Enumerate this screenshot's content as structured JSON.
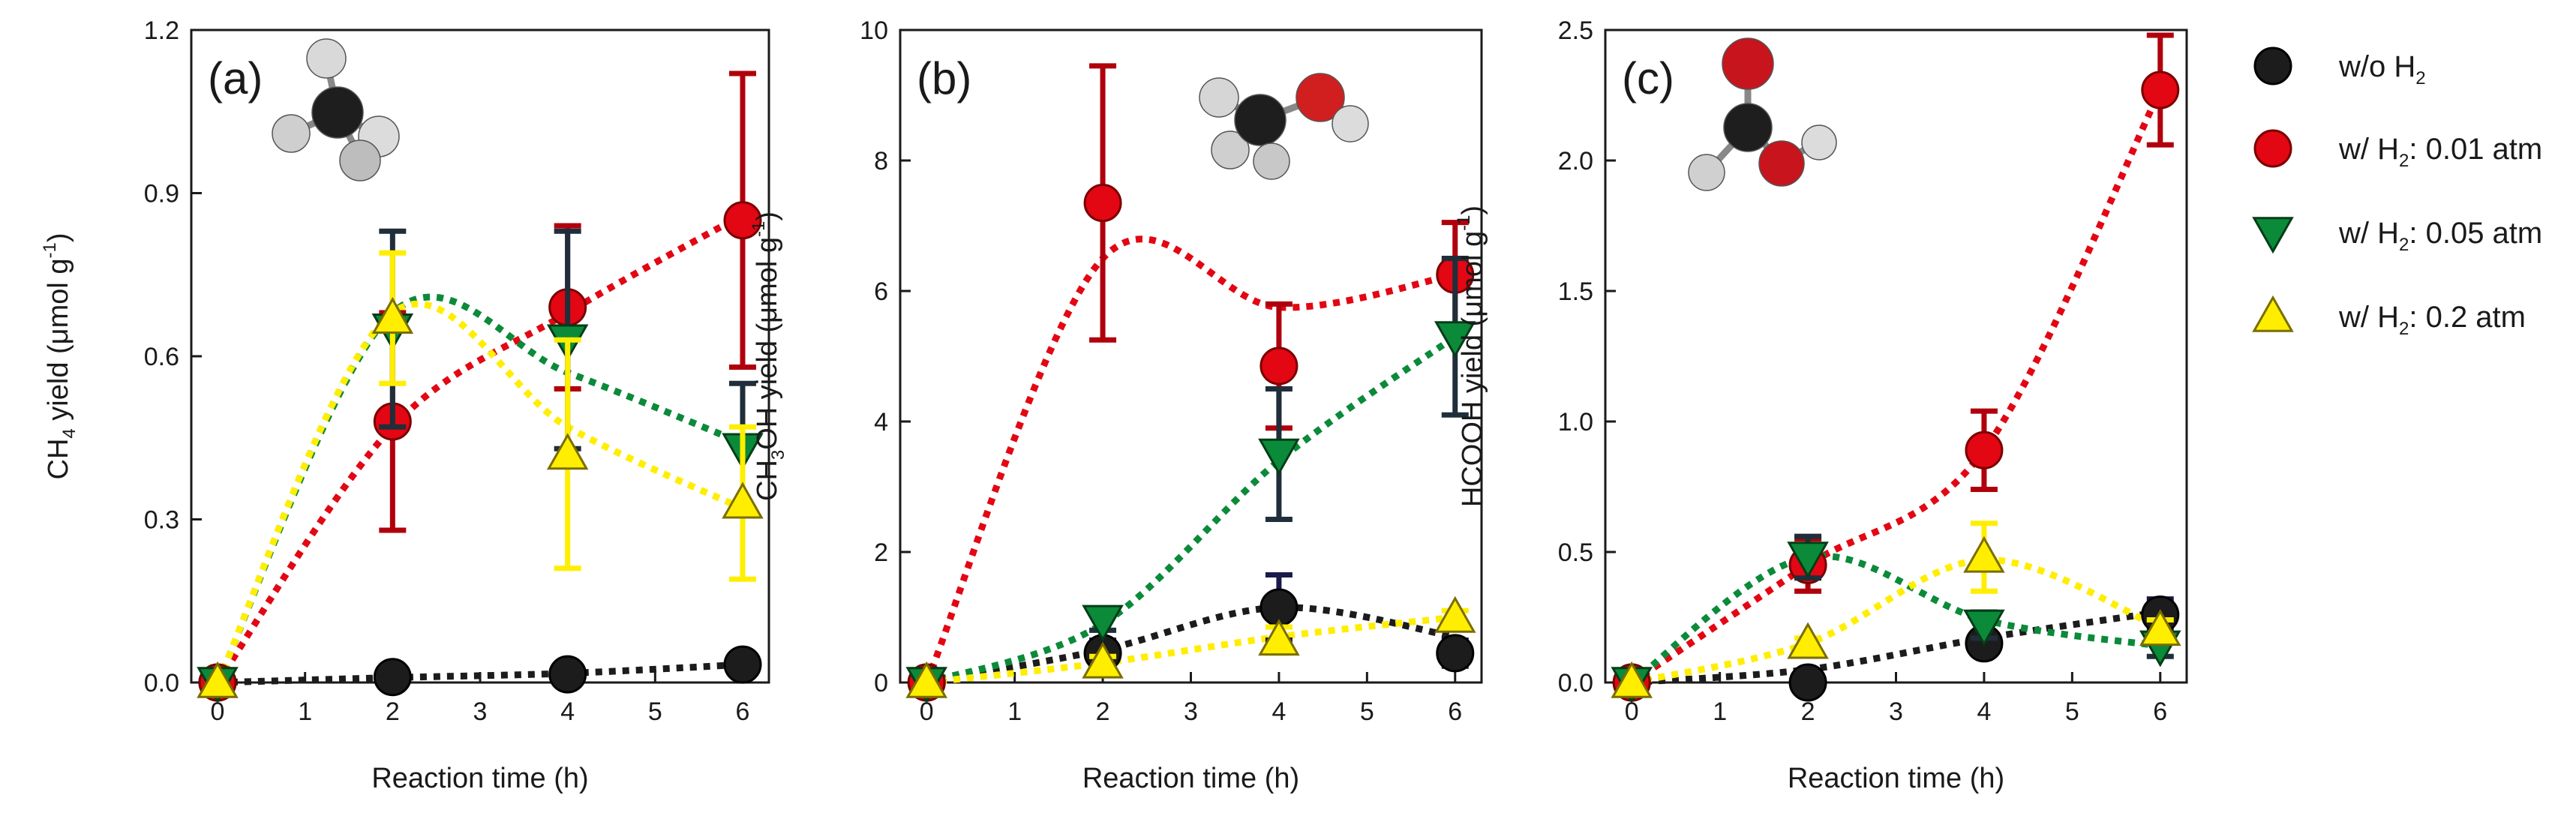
{
  "chart_data": [
    {
      "type": "scatter",
      "panel_label": "(a)",
      "xlabel": "Reaction time (h)",
      "ylabel": "CH",
      "ylabel_sub": "4",
      "ylabel_rest": " yield (μmol g",
      "ylabel_sup": "-1",
      "ylabel_end": ")",
      "xlim": [
        -0.3,
        6.3
      ],
      "ylim": [
        0,
        1.2
      ],
      "xticks": [
        0,
        1,
        2,
        3,
        4,
        5,
        6
      ],
      "yticks": [
        0.0,
        0.3,
        0.6,
        0.9,
        1.2
      ],
      "ytick_labels": [
        "0.0",
        "0.3",
        "0.6",
        "0.9",
        "1.2"
      ],
      "molecule": "methane",
      "series": [
        {
          "name": "w/o H2",
          "x": [
            0,
            2,
            4,
            6
          ],
          "y": [
            0.0,
            0.01,
            0.015,
            0.033
          ],
          "err": [
            0.005,
            0.005,
            0.008,
            0.01
          ],
          "curve": [
            0.0,
            0.009,
            0.017,
            0.033
          ]
        },
        {
          "name": "w/ H2: 0.01 atm",
          "x": [
            0,
            2,
            4,
            6
          ],
          "y": [
            0.0,
            0.48,
            0.69,
            0.85
          ],
          "err": [
            0.0,
            0.2,
            0.15,
            0.27
          ],
          "curve": [
            0.0,
            0.47,
            0.68,
            0.86
          ]
        },
        {
          "name": "w/ H2: 0.05 atm",
          "x": [
            0,
            2,
            4,
            6
          ],
          "y": [
            0.0,
            0.65,
            0.63,
            0.43
          ],
          "err": [
            0.0,
            0.18,
            0.2,
            0.12
          ],
          "curve": [
            0.0,
            0.68,
            0.57,
            0.44
          ]
        },
        {
          "name": "w/ H2: 0.2 atm",
          "x": [
            0,
            2,
            4,
            6
          ],
          "y": [
            0.0,
            0.67,
            0.42,
            0.33
          ],
          "err": [
            0.0,
            0.12,
            0.21,
            0.14
          ],
          "curve": [
            0.0,
            0.68,
            0.47,
            0.32
          ]
        }
      ]
    },
    {
      "type": "scatter",
      "panel_label": "(b)",
      "xlabel": "Reaction time (h)",
      "ylabel": "CH",
      "ylabel_sub": "3",
      "ylabel_rest": "OH yield (μmol g",
      "ylabel_sup": "-1",
      "ylabel_end": ")",
      "xlim": [
        -0.3,
        6.3
      ],
      "ylim": [
        0,
        10
      ],
      "xticks": [
        0,
        1,
        2,
        3,
        4,
        5,
        6
      ],
      "yticks": [
        0,
        2,
        4,
        6,
        8,
        10
      ],
      "ytick_labels": [
        "0",
        "2",
        "4",
        "6",
        "8",
        "10"
      ],
      "molecule": "methanol",
      "series": [
        {
          "name": "w/o H2",
          "x": [
            0,
            2,
            4,
            6
          ],
          "y": [
            0.0,
            0.45,
            1.15,
            0.45
          ],
          "err": [
            0.05,
            0.2,
            0.5,
            0.2
          ],
          "curve": [
            0.0,
            0.5,
            1.15,
            0.7
          ]
        },
        {
          "name": "w/ H2: 0.01 atm",
          "x": [
            0,
            2,
            4,
            6
          ],
          "y": [
            0.0,
            7.35,
            4.85,
            6.25
          ],
          "err": [
            0.0,
            2.1,
            0.95,
            0.8
          ],
          "curve": [
            0.0,
            6.5,
            5.75,
            6.25
          ]
        },
        {
          "name": "w/ H2: 0.05 atm",
          "x": [
            0,
            2,
            4,
            6
          ],
          "y": [
            0.0,
            0.95,
            3.5,
            5.3
          ],
          "err": [
            0.0,
            0.15,
            1.0,
            1.2
          ],
          "curve": [
            0.0,
            0.9,
            3.4,
            5.3
          ]
        },
        {
          "name": "w/ H2: 0.2 atm",
          "x": [
            0,
            2,
            4,
            6
          ],
          "y": [
            0.0,
            0.3,
            0.65,
            1.0
          ],
          "err": [
            0.0,
            0.1,
            0.2,
            0.1
          ],
          "curve": [
            0.0,
            0.3,
            0.7,
            1.0
          ]
        }
      ]
    },
    {
      "type": "scatter",
      "panel_label": "(c)",
      "xlabel": "Reaction time (h)",
      "ylabel": "HCOOH yield (μmol g",
      "ylabel_sub": "",
      "ylabel_rest": "",
      "ylabel_sup": "-1",
      "ylabel_end": ")",
      "xlim": [
        -0.3,
        6.3
      ],
      "ylim": [
        0,
        2.5
      ],
      "xticks": [
        0,
        1,
        2,
        3,
        4,
        5,
        6
      ],
      "yticks": [
        0.0,
        0.5,
        1.0,
        1.5,
        2.0,
        2.5
      ],
      "ytick_labels": [
        "0.0",
        "0.5",
        "1.0",
        "1.5",
        "2.0",
        "2.5"
      ],
      "molecule": "formic-acid",
      "series": [
        {
          "name": "w/o H2",
          "x": [
            0,
            2,
            4,
            6
          ],
          "y": [
            0.0,
            0.0,
            0.15,
            0.26
          ],
          "err": [
            0.0,
            0.0,
            0.03,
            0.06
          ],
          "curve": [
            0.0,
            0.05,
            0.17,
            0.27
          ]
        },
        {
          "name": "w/ H2: 0.01 atm",
          "x": [
            0,
            2,
            4,
            6
          ],
          "y": [
            0.0,
            0.45,
            0.89,
            2.27
          ],
          "err": [
            0.0,
            0.1,
            0.15,
            0.21
          ],
          "curve": [
            0.0,
            0.45,
            0.89,
            2.27
          ]
        },
        {
          "name": "w/ H2: 0.05 atm",
          "x": [
            0,
            2,
            4,
            6
          ],
          "y": [
            0.0,
            0.48,
            0.22,
            0.14
          ],
          "err": [
            0.0,
            0.08,
            0.05,
            0.04
          ],
          "curve": [
            0.0,
            0.48,
            0.24,
            0.14
          ]
        },
        {
          "name": "w/ H2: 0.2 atm",
          "x": [
            0,
            2,
            4,
            6
          ],
          "y": [
            0.0,
            0.15,
            0.48,
            0.2
          ],
          "err": [
            0.0,
            0.02,
            0.13,
            0.04
          ],
          "curve": [
            0.0,
            0.15,
            0.47,
            0.21
          ]
        }
      ]
    }
  ],
  "legend": {
    "placement": "right",
    "entries": [
      {
        "label_main": "w/o H",
        "label_sub": "2",
        "label_rest": ""
      },
      {
        "label_main": "w/ H",
        "label_sub": "2",
        "label_rest": ": 0.01 atm"
      },
      {
        "label_main": "w/ H",
        "label_sub": "2",
        "label_rest": ": 0.05 atm"
      },
      {
        "label_main": "w/ H",
        "label_sub": "2",
        "label_rest": ": 0.2 atm"
      }
    ]
  },
  "styles": {
    "series": [
      {
        "color": "#1c1c1c",
        "edge": "#000000",
        "marker": "circle",
        "curve_color": "#1c1c1c"
      },
      {
        "color": "#e30613",
        "edge": "#7a0000",
        "marker": "circle",
        "curve_color": "#e30613"
      },
      {
        "color": "#0b8a3a",
        "edge": "#033d17",
        "marker": "triangle-down",
        "curve_color": "#0b8a3a"
      },
      {
        "color": "#ffee00",
        "edge": "#7a6d00",
        "marker": "triangle-up",
        "curve_color": "#ffee00"
      }
    ],
    "error_colors": [
      "#1a1a4a",
      "#b0000c",
      "#1f2e3a",
      "#ffee00"
    ]
  }
}
